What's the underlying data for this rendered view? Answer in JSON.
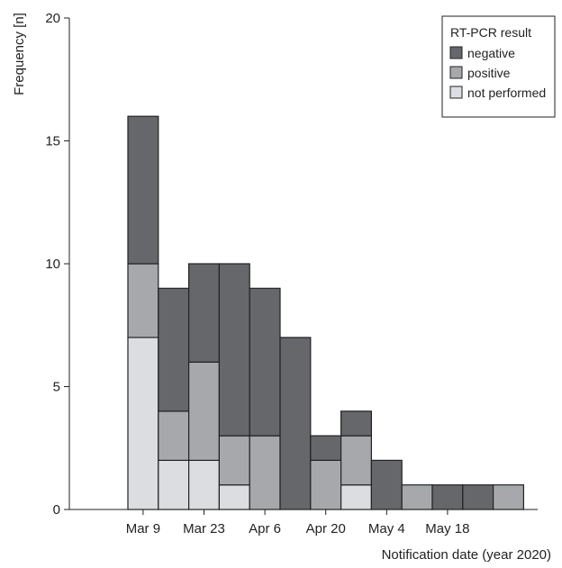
{
  "chart_data": {
    "type": "bar",
    "stacked": true,
    "xlabel": "Notification date (year 2020)",
    "ylabel": "Frequency [n]",
    "ylim": [
      0,
      20
    ],
    "yticks": [
      0,
      5,
      10,
      15,
      20
    ],
    "xtick_labels": [
      "Mar 9",
      "Mar 23",
      "Apr 6",
      "Apr 20",
      "May 4",
      "May 18"
    ],
    "categories": [
      "2020-03-09",
      "2020-03-16",
      "2020-03-23",
      "2020-03-30",
      "2020-04-06",
      "2020-04-13",
      "2020-04-20",
      "2020-04-27",
      "2020-05-04",
      "2020-05-11",
      "2020-05-18",
      "2020-05-25",
      "2020-06-01"
    ],
    "legend": {
      "title": "RT-PCR result",
      "position": "top-right"
    },
    "series": [
      {
        "name": "not performed",
        "color": "#dcdde0",
        "values": [
          7,
          2,
          2,
          1,
          0,
          0,
          0,
          1,
          0,
          0,
          0,
          0,
          0
        ]
      },
      {
        "name": "positive",
        "color": "#a6a8ac",
        "values": [
          3,
          2,
          4,
          2,
          3,
          0,
          2,
          2,
          0,
          1,
          0,
          0,
          1
        ]
      },
      {
        "name": "negative",
        "color": "#66676b",
        "values": [
          6,
          5,
          4,
          7,
          6,
          7,
          1,
          1,
          2,
          0,
          1,
          1,
          0
        ]
      }
    ]
  }
}
